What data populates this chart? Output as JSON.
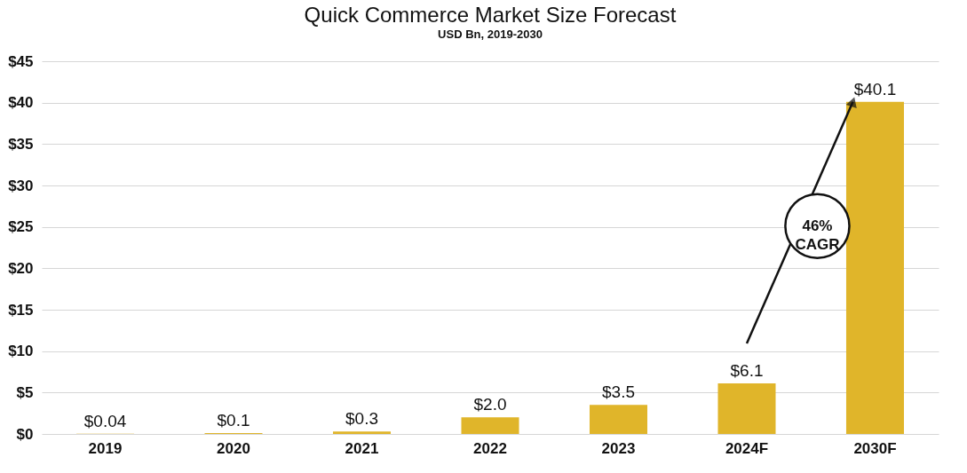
{
  "chart_data": {
    "type": "bar",
    "title": "Quick Commerce Market Size Forecast",
    "subtitle": "USD Bn, 2019-2030",
    "categories": [
      "2019",
      "2020",
      "2021",
      "2022",
      "2023",
      "2024F",
      "2030F"
    ],
    "values": [
      0.04,
      0.1,
      0.3,
      2.0,
      3.5,
      6.1,
      40.1
    ],
    "value_labels": [
      "$0.04",
      "$0.1",
      "$0.3",
      "$2.0",
      "$3.5",
      "$6.1",
      "$40.1"
    ],
    "color": "#e0b52a",
    "ylim": [
      0,
      45
    ],
    "yticks": [
      {
        "value": 0,
        "label": "$0"
      },
      {
        "value": 5,
        "label": "$5"
      },
      {
        "value": 10,
        "label": "$10"
      },
      {
        "value": 15,
        "label": "$15"
      },
      {
        "value": 20,
        "label": "$20"
      },
      {
        "value": 25,
        "label": "$25"
      },
      {
        "value": 30,
        "label": "$30"
      },
      {
        "value": 35,
        "label": "$35"
      },
      {
        "value": 40,
        "label": "$40"
      },
      {
        "value": 45,
        "label": "$45"
      }
    ],
    "grid": "y",
    "annotations": [
      "46% CAGR"
    ]
  }
}
